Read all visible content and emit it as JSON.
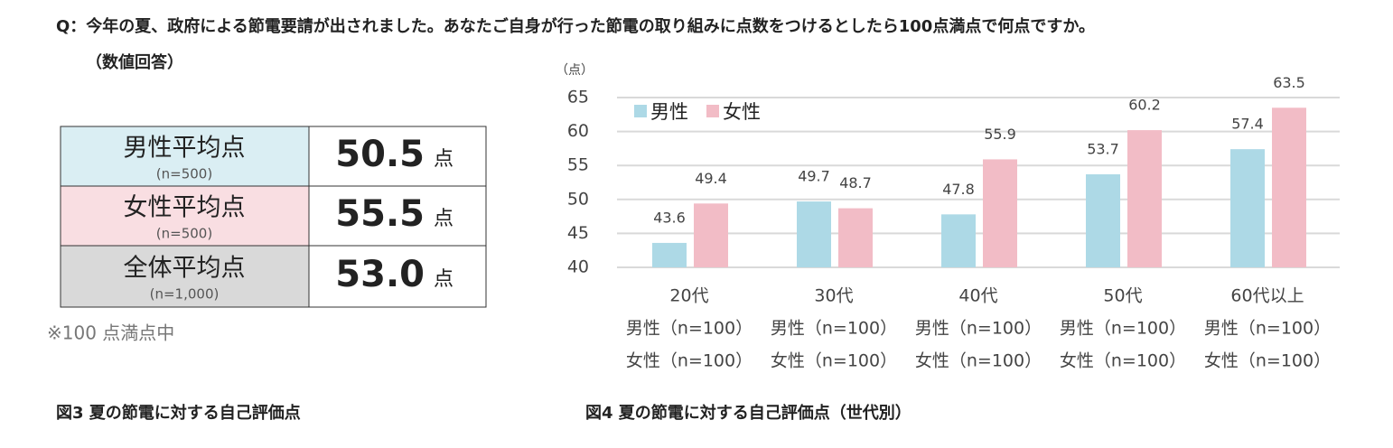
{
  "question": {
    "text": "Q：今年の夏、政府による節電要請が出されました。あなたご自身が行った節電の取り組みに点数をつけるとしたら100点満点で何点ですか。",
    "answer_type": "（数値回答）"
  },
  "table": {
    "rows": [
      {
        "label": "男性平均点",
        "n": "(n=500)",
        "value": "50.5",
        "unit": "点"
      },
      {
        "label": "女性平均点",
        "n": "(n=500)",
        "value": "55.5",
        "unit": "点"
      },
      {
        "label": "全体平均点",
        "n": "(n=1,000)",
        "value": "53.0",
        "unit": "点"
      }
    ],
    "note": "※100 点満点中",
    "caption": "図3  夏の節電に対する自己評価点"
  },
  "chart_data": {
    "type": "bar",
    "y_unit": "（点）",
    "caption": "図4  夏の節電に対する自己評価点（世代別）",
    "categories": [
      "20代",
      "30代",
      "40代",
      "50代",
      "60代以上"
    ],
    "male_n_labels": [
      "男性（n=100）",
      "男性（n=100）",
      "男性（n=100）",
      "男性（n=100）",
      "男性（n=100）"
    ],
    "female_n_labels": [
      "女性（n=100）",
      "女性（n=100）",
      "女性（n=100）",
      "女性（n=100）",
      "女性（n=100）"
    ],
    "series": [
      {
        "name": "男性",
        "color": "#add9e6",
        "values": [
          43.6,
          49.7,
          47.8,
          53.7,
          57.4
        ]
      },
      {
        "name": "女性",
        "color": "#f2bcc6",
        "values": [
          49.4,
          48.7,
          55.9,
          60.2,
          63.5
        ]
      }
    ],
    "ylim": [
      40,
      65
    ],
    "yticks": [
      40,
      45,
      50,
      55,
      60,
      65
    ],
    "grid": true,
    "legend": "top-left"
  }
}
